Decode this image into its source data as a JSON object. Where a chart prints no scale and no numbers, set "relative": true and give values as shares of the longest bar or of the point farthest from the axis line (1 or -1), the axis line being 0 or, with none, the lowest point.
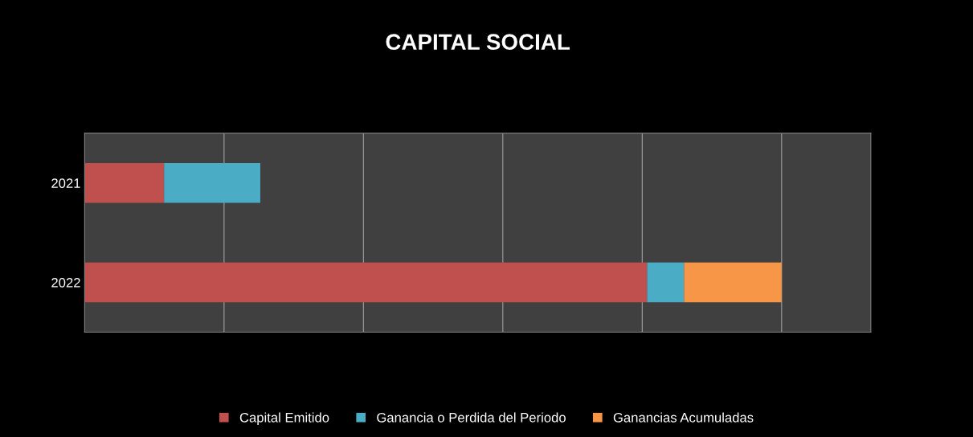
{
  "chart_data": {
    "type": "bar",
    "title": "CAPITAL SOCIAL",
    "orientation": "horizontal",
    "stacked": true,
    "relative": true,
    "grid": "x",
    "legend": "bottom",
    "categories": [
      "2021",
      "2022"
    ],
    "series": [
      {
        "name": "Capital Emitido",
        "color": "#c0504d",
        "values": [
          0.114,
          0.807
        ]
      },
      {
        "name": "Ganancia o Perdida del Periodo",
        "color": "#4bacc6",
        "values": [
          0.138,
          0.053
        ]
      },
      {
        "name": "Ganancias Acumuladas",
        "color": "#f79646",
        "values": [
          null,
          0.14
        ]
      }
    ]
  }
}
